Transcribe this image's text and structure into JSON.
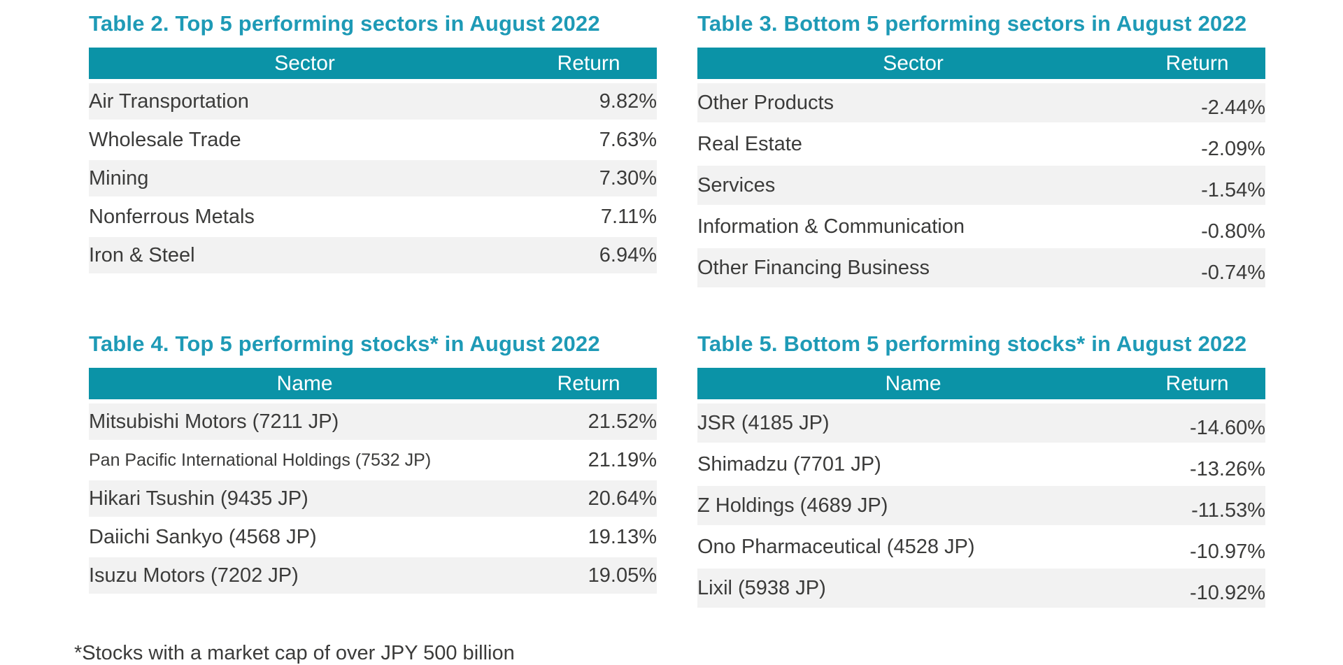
{
  "theme": {
    "title_color": "#1E9AB6",
    "header_bg": "#0B93A7",
    "header_text_color": "#FFFFFF",
    "row_alt_bg": "#F2F2F2",
    "body_text_color": "#3B3B3A"
  },
  "footnote": "*Stocks with a market cap of over JPY 500 billion",
  "tables": [
    {
      "title": "Table 2. Top 5 performing sectors in August 2022",
      "columns": [
        "Sector",
        "Return"
      ],
      "rows": [
        [
          "Air Transportation",
          "9.82%"
        ],
        [
          "Wholesale Trade",
          "7.63%"
        ],
        [
          "Mining",
          "7.30%"
        ],
        [
          "Nonferrous Metals",
          "7.11%"
        ],
        [
          "Iron & Steel",
          "6.94%"
        ]
      ]
    },
    {
      "title": "Table 3. Bottom 5 performing sectors in August 2022",
      "columns": [
        "Sector",
        "Return"
      ],
      "rows": [
        [
          "Other Products",
          "-2.44%"
        ],
        [
          "Real Estate",
          "-2.09%"
        ],
        [
          "Services",
          "-1.54%"
        ],
        [
          "Information & Communication",
          "-0.80%"
        ],
        [
          "Other Financing Business",
          "-0.74%"
        ]
      ]
    },
    {
      "title": "Table 4. Top 5 performing stocks* in August 2022",
      "columns": [
        "Name",
        "Return"
      ],
      "rows": [
        [
          "Mitsubishi Motors (7211 JP)",
          "21.52%"
        ],
        [
          "Pan Pacific International Holdings (7532 JP)",
          "21.19%"
        ],
        [
          "Hikari Tsushin (9435 JP)",
          "20.64%"
        ],
        [
          "Daiichi Sankyo (4568 JP)",
          "19.13%"
        ],
        [
          "Isuzu Motors (7202 JP)",
          "19.05%"
        ]
      ]
    },
    {
      "title": "Table 5. Bottom 5 performing stocks* in August 2022",
      "columns": [
        "Name",
        "Return"
      ],
      "rows": [
        [
          "JSR (4185 JP)",
          "-14.60%"
        ],
        [
          "Shimadzu (7701 JP)",
          "-13.26%"
        ],
        [
          "Z Holdings (4689 JP)",
          "-11.53%"
        ],
        [
          "Ono Pharmaceutical (4528 JP)",
          "-10.97%"
        ],
        [
          "Lixil (5938 JP)",
          "-10.92%"
        ]
      ]
    }
  ]
}
